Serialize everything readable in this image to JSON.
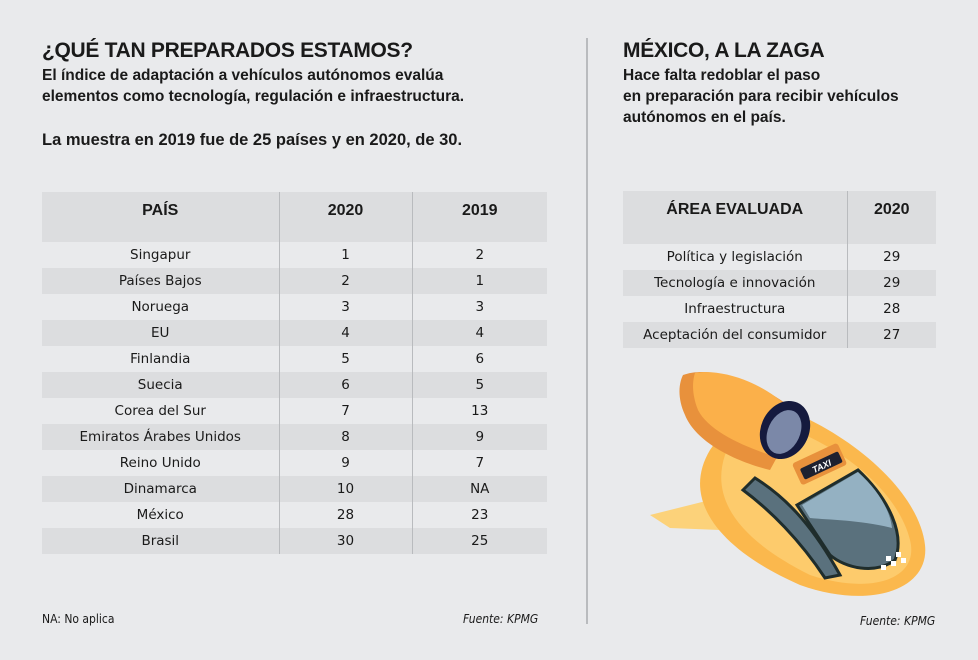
{
  "left": {
    "title": "¿QUÉ TAN PREPARADOS ESTAMOS?",
    "subtitle_1": "El índice de adaptación a vehículos autónomos evalúa",
    "subtitle_2": "elementos como tecnología, regulación e infraestructura.",
    "sample": "La muestra en 2019 fue de 25 países y en 2020, de 30.",
    "table": {
      "headers": [
        "PAÍS",
        "2020",
        "2019"
      ],
      "rows": [
        [
          "Singapur",
          "1",
          "2"
        ],
        [
          "Países Bajos",
          "2",
          "1"
        ],
        [
          "Noruega",
          "3",
          "3"
        ],
        [
          "EU",
          "4",
          "4"
        ],
        [
          "Finlandia",
          "5",
          "6"
        ],
        [
          "Suecia",
          "6",
          "5"
        ],
        [
          "Corea del Sur",
          "7",
          "13"
        ],
        [
          "Emiratos Árabes Unidos",
          "8",
          "9"
        ],
        [
          "Reino Unido",
          "9",
          "7"
        ],
        [
          "Dinamarca",
          "10",
          "NA"
        ],
        [
          "México",
          "28",
          "23"
        ],
        [
          "Brasil",
          "30",
          "25"
        ]
      ]
    },
    "note": "NA: No aplica",
    "source": "Fuente: KPMG"
  },
  "right": {
    "title": "MÉXICO, A LA ZAGA",
    "subtitle_1": "Hace falta redoblar el paso",
    "subtitle_2": "en preparación para recibir vehículos",
    "subtitle_3": "autónomos en el país.",
    "table": {
      "headers": [
        "ÁREA EVALUADA",
        "2020"
      ],
      "rows": [
        [
          "Política y legislación",
          "29"
        ],
        [
          "Tecnología e innovación",
          "29"
        ],
        [
          "Infraestructura",
          "28"
        ],
        [
          "Aceptación del consumidor",
          "27"
        ]
      ]
    },
    "illustration": {
      "sign": "TAXI"
    },
    "source": "Fuente: KPMG"
  },
  "colors": {
    "background": "#e9eaec",
    "stripe": "#dcdddf",
    "car": "#fbb84d"
  }
}
